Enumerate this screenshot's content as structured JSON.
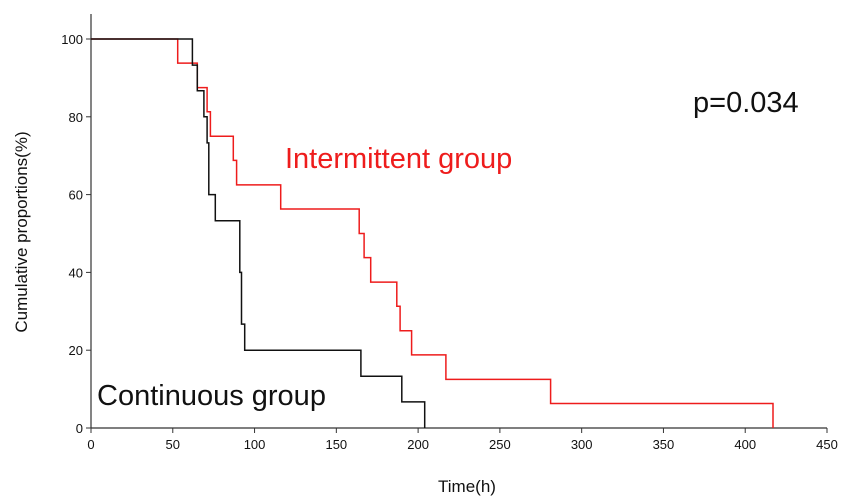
{
  "chart_data": {
    "type": "line",
    "step": true,
    "xlabel": "Time(h)",
    "ylabel": "Cumulative proportions(%)",
    "xlim": [
      0,
      450
    ],
    "ylim": [
      0,
      100
    ],
    "xticks": [
      "0",
      "50",
      "100",
      "150",
      "200",
      "250",
      "300",
      "350",
      "400",
      "450"
    ],
    "yticks": [
      "0",
      "20",
      "40",
      "60",
      "80",
      "100"
    ],
    "grid": false,
    "annotation": "p=0.034",
    "series": [
      {
        "name": "Intermittent group",
        "color": "#ee1c1c",
        "points": [
          [
            0,
            100
          ],
          [
            53,
            100
          ],
          [
            53,
            93.8
          ],
          [
            65,
            93.8
          ],
          [
            65,
            87.5
          ],
          [
            71,
            87.5
          ],
          [
            71,
            81.3
          ],
          [
            73,
            81.3
          ],
          [
            73,
            75
          ],
          [
            87,
            75
          ],
          [
            87,
            68.8
          ],
          [
            89,
            68.8
          ],
          [
            89,
            62.5
          ],
          [
            116,
            62.5
          ],
          [
            116,
            56.3
          ],
          [
            164,
            56.3
          ],
          [
            164,
            50
          ],
          [
            167,
            50
          ],
          [
            167,
            43.8
          ],
          [
            171,
            43.8
          ],
          [
            171,
            37.5
          ],
          [
            187,
            37.5
          ],
          [
            187,
            31.3
          ],
          [
            189,
            31.3
          ],
          [
            189,
            25
          ],
          [
            196,
            25
          ],
          [
            196,
            18.8
          ],
          [
            217,
            18.8
          ],
          [
            217,
            12.5
          ],
          [
            281,
            12.5
          ],
          [
            281,
            6.3
          ],
          [
            417,
            6.3
          ],
          [
            417,
            0
          ]
        ]
      },
      {
        "name": "Continuous group",
        "color": "#111111",
        "points": [
          [
            0,
            100
          ],
          [
            62,
            100
          ],
          [
            62,
            93.3
          ],
          [
            65,
            93.3
          ],
          [
            65,
            86.7
          ],
          [
            69,
            86.7
          ],
          [
            69,
            80
          ],
          [
            71,
            80
          ],
          [
            71,
            73.3
          ],
          [
            72,
            73.3
          ],
          [
            72,
            60
          ],
          [
            76,
            60
          ],
          [
            76,
            53.3
          ],
          [
            91,
            53.3
          ],
          [
            91,
            40
          ],
          [
            92,
            40
          ],
          [
            92,
            26.7
          ],
          [
            94,
            26.7
          ],
          [
            94,
            20
          ],
          [
            165,
            20
          ],
          [
            165,
            13.3
          ],
          [
            190,
            13.3
          ],
          [
            190,
            6.7
          ],
          [
            204,
            6.7
          ],
          [
            204,
            0
          ]
        ]
      }
    ]
  }
}
